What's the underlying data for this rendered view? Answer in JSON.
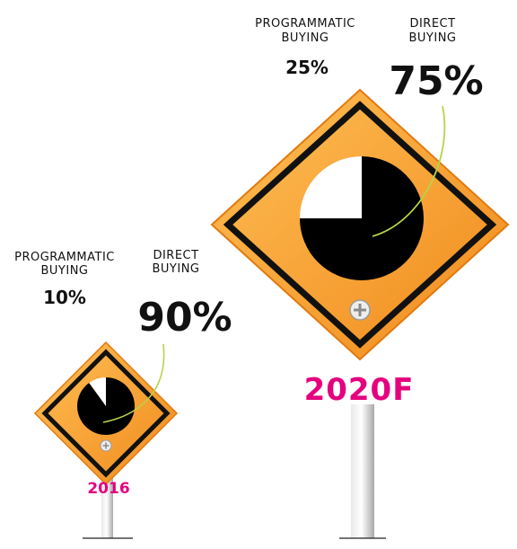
{
  "chart_data": [
    {
      "type": "pie",
      "year": "2016",
      "slices": [
        {
          "name_lines": [
            "PROGRAMMATIC",
            "BUYING"
          ],
          "value": 10,
          "label": "10%",
          "color": "#ffffff"
        },
        {
          "name_lines": [
            "DIRECT",
            "BUYING"
          ],
          "value": 90,
          "label": "90%",
          "color": "#000000"
        }
      ]
    },
    {
      "type": "pie",
      "year": "2020F",
      "slices": [
        {
          "name_lines": [
            "PROGRAMMATIC",
            "BUYING"
          ],
          "value": 25,
          "label": "25%",
          "color": "#ffffff"
        },
        {
          "name_lines": [
            "DIRECT",
            "BUYING"
          ],
          "value": 75,
          "label": "75%",
          "color": "#000000"
        }
      ]
    }
  ],
  "colors": {
    "sign_orange": "#f7a233",
    "year_label": "#e5007e",
    "leader_line": "#b5d44a",
    "pole": "#cfcfcf"
  },
  "icons": {
    "sign_bolt": "plus-bolt-icon"
  }
}
